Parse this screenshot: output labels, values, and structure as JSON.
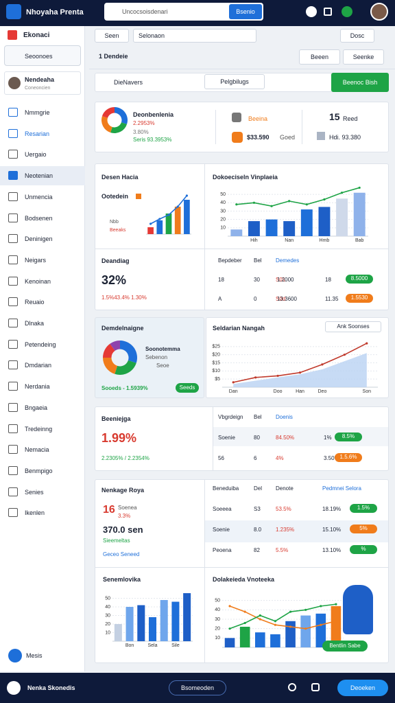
{
  "topbar": {
    "brand": "Nhoyaha Prenta",
    "search": "Uncocsoisdenari",
    "search_button": "Bsenio"
  },
  "sidebar": {
    "title": "Ekonaci",
    "select": "Seoonoes",
    "user": {
      "name": "Nendeaha",
      "sub": "Coneoncien"
    },
    "items": [
      "Nmmgrie",
      "Resarian",
      "Uergaio",
      "Neotenian",
      "Unmencia",
      "Bodsenen",
      "Deninigen",
      "Neigars",
      "Kenoinan",
      "Reuaio",
      "Dlnaka",
      "Petendeing",
      "Dmdarian",
      "Nerdania",
      "Bngaeia",
      "Tredeinng",
      "Nemacia",
      "Benmpigo",
      "Senies",
      "Ikenlen"
    ],
    "active": 3,
    "bottom": "Mesis"
  },
  "toolbar": {
    "seen": "Seen",
    "select": "Selonaon",
    "right": "Dosc"
  },
  "header": {
    "title": "1 Dendeie",
    "buttons": [
      "Beeen",
      "Seenke"
    ]
  },
  "search": {
    "placeholder": "DieNavers",
    "filter": "Pelgbilugs",
    "action": "Beenoc Bish"
  },
  "stats": {
    "title": "Deonbenlenia",
    "line1": "2.2953%",
    "line2": "3.80%",
    "line3": "Seris 93.3953%",
    "donut": {
      "type": "pie",
      "values": [
        30,
        25,
        25,
        20
      ],
      "colors": [
        "#1e6fd9",
        "#1ea446",
        "#f07c1b",
        "#e53935"
      ]
    },
    "mid": {
      "label": "Beeina",
      "value": "$33.590",
      "sub": "Goed"
    },
    "right": {
      "value": "15",
      "label": "Reed",
      "sub": "Hdi. 93.380"
    }
  },
  "panel1": {
    "title": "Desen Hacia",
    "legend": "Ootedein",
    "l2": "Nbb",
    "l3": "Beeaks",
    "chart": {
      "type": "bar",
      "ylim": [
        0,
        6
      ],
      "series": [
        {
          "type": "bar",
          "values": [
            1,
            2,
            3,
            4,
            5
          ],
          "colors": [
            "#e53935",
            "#1e6fd9",
            "#1ea446",
            "#f07c1b",
            "#1e6fd9"
          ]
        },
        {
          "type": "line",
          "values": [
            1.5,
            2.2,
            2.8,
            4,
            5.6
          ],
          "color": "#1e6fd9"
        }
      ]
    }
  },
  "panel2": {
    "title": "Dokoeciseln Vinplaeia",
    "chart": {
      "type": "bar",
      "ylim": [
        0,
        60
      ],
      "yticks": [
        10,
        20,
        30,
        40,
        50
      ],
      "categories": [
        null,
        "Hih",
        null,
        "Nan",
        null,
        "Hmb",
        null,
        "Bab"
      ],
      "series": [
        {
          "type": "bar",
          "values": [
            8,
            18,
            20,
            18,
            32,
            35,
            45,
            52
          ],
          "colors": [
            "#8fb2ea",
            "#1e5fc7",
            "#1e6fd9",
            "#1e5fc7",
            "#1e6fd9",
            "#1e5fc7",
            "#cfd9ea",
            "#8fb2ea"
          ]
        },
        {
          "type": "line",
          "values": [
            38,
            40,
            36,
            42,
            38,
            44,
            52,
            58
          ],
          "color": "#1ea446"
        }
      ]
    }
  },
  "panel3": {
    "title": "Deandiag",
    "big": "32%",
    "sub": "1.5%43.4% 1.30%"
  },
  "panel4": {
    "header": [
      "Bepdeber",
      "Bel",
      "Demedes"
    ],
    "rows": [
      [
        "18",
        "30",
        "S01",
        "1.2000",
        "18",
        "8.5000"
      ],
      [
        "A",
        "0",
        "S0d",
        "13.3600",
        "11.35",
        "1.5530"
      ]
    ]
  },
  "card3": {
    "title": "Demdelnaigne",
    "name": "Soonotemma",
    "sub1": "Sebenon",
    "sub2": "Seoe",
    "footer": "Sooeds - 1.5939%",
    "button": "Seeds",
    "donut": {
      "type": "pie",
      "values": [
        30,
        25,
        20,
        15,
        10
      ],
      "colors": [
        "#1e6fd9",
        "#1ea446",
        "#f07c1b",
        "#e53935",
        "#8e44ad"
      ]
    }
  },
  "card3r": {
    "title": "Seldarian Nangah",
    "button": "Ank Soonses",
    "chart": {
      "type": "line",
      "ylim": [
        0,
        30
      ],
      "yticks": [
        {
          "value": 5,
          "label": "$5"
        },
        {
          "value": 10,
          "label": "$10"
        },
        {
          "value": 15,
          "label": "$15"
        },
        {
          "value": 20,
          "label": "$20"
        },
        {
          "value": 25,
          "label": "$25"
        }
      ],
      "categories": [
        "Dan",
        null,
        "Doo",
        "Han",
        "Deo",
        null,
        "Son"
      ],
      "series": [
        {
          "type": "area",
          "values": [
            2,
            4,
            6,
            8,
            11,
            16,
            21
          ],
          "color": "#b9d2f2"
        },
        {
          "type": "line",
          "values": [
            3,
            6,
            7,
            9,
            14,
            20,
            27
          ],
          "color": "#c0392b"
        }
      ]
    }
  },
  "card4": {
    "title": "Beeniejga",
    "big": "1.99%",
    "sub": "2.2305% / 2.2354%",
    "header": [
      "Vbgrdeign",
      "Bel",
      "Doenis"
    ],
    "rows": [
      [
        "Soenie",
        "80",
        "84.50%",
        "1%",
        "8.5%"
      ],
      [
        "56",
        "6",
        "4%",
        "3.50%",
        "1.5.6%"
      ]
    ]
  },
  "card5": {
    "title": "Nenkage Roya",
    "big": "16",
    "label": "Soenea",
    "pct": "3.3%",
    "amount": "370.0 sen",
    "note": "Sieemeltas",
    "footer": "Geceo Seneed",
    "header": [
      "Beneduiba",
      "Del",
      "Denote",
      "Pedmnei Selora"
    ],
    "rows": [
      [
        "Soeeea",
        "S3",
        "53.5%",
        "18.19%",
        "1.5%"
      ],
      [
        "Soenie",
        "8.0",
        "1.235%",
        "15.10%",
        "5%"
      ],
      [
        "Peoena",
        "82",
        "5.5%",
        "13.10%",
        "%"
      ]
    ]
  },
  "chartD": {
    "title": "Senemlovika",
    "chart": {
      "type": "bar",
      "ylim": [
        0,
        60
      ],
      "yticks": [
        10,
        20,
        30,
        40,
        50
      ],
      "categories": [
        null,
        "Bon",
        null,
        "Sela",
        null,
        "Sile",
        null
      ],
      "series": [
        {
          "type": "bar",
          "values": [
            20,
            40,
            42,
            28,
            48,
            46,
            56
          ],
          "colors": [
            "#c4d0e2",
            "#6fa6ec",
            "#1e5fc7",
            "#1e6fd9",
            "#6fa6ec",
            "#1e6fd9",
            "#1e5fc7"
          ]
        }
      ]
    }
  },
  "chartE": {
    "title": "Dolakeieda Vnoteeka",
    "button": "Bentlin Sabe",
    "chart": {
      "type": "bar",
      "ylim": [
        0,
        60
      ],
      "yticks": [
        10,
        20,
        30,
        40,
        50
      ],
      "series": [
        {
          "type": "bar",
          "values": [
            10,
            22,
            16,
            14,
            28,
            34,
            36,
            44
          ],
          "colors": [
            "#1e5fc7",
            "#1ea446",
            "#1e6fd9",
            "#1e6fd9",
            "#1e5fc7",
            "#6fa6ec",
            "#1e6fd9",
            "#f07c1b"
          ]
        },
        {
          "type": "line",
          "values": [
            44,
            38,
            30,
            24,
            22,
            20,
            24,
            28
          ],
          "color": "#f07c1b"
        },
        {
          "type": "line",
          "values": [
            20,
            26,
            34,
            28,
            38,
            40,
            44,
            46
          ],
          "color": "#1ea446"
        }
      ]
    }
  },
  "bottombar": {
    "title": "Nenka Skonedis",
    "center": "Bsomeoden",
    "button": "Deoeken"
  }
}
